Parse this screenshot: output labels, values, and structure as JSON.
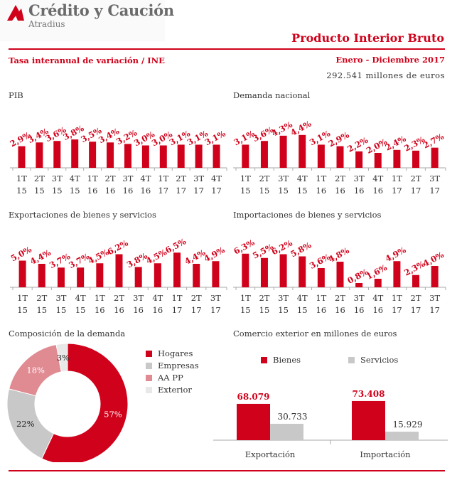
{
  "brand": {
    "name": "Crédito y Caución",
    "sub": "Atradius"
  },
  "report": {
    "title": "Producto Interior Bruto",
    "subtitle": "Tasa interanual de variación / INE",
    "period": "Enero - Diciembre 2017",
    "gdp_value": "292.541 millones de euros"
  },
  "colors": {
    "red": "#d0021b",
    "gray": "#c8c8c8",
    "pink": "#e08a92",
    "light": "#e8e8e8"
  },
  "chart_data": [
    {
      "type": "bar",
      "title": "PIB",
      "categories": [
        "1T 15",
        "2T 15",
        "3T 15",
        "4T 15",
        "1T 16",
        "2T 16",
        "3T 16",
        "4T 16",
        "1T 17",
        "2T 17",
        "3T 17",
        "4T 17"
      ],
      "values": [
        2.9,
        3.4,
        3.6,
        3.8,
        3.5,
        3.4,
        3.2,
        3.0,
        3.0,
        3.1,
        3.1,
        3.1
      ],
      "labels": [
        "2,9%",
        "3,4%",
        "3,6%",
        "3,8%",
        "3,5%",
        "3,4%",
        "3,2%",
        "3,0%",
        "3,0%",
        "3,1%",
        "3,1%",
        "3,1%"
      ]
    },
    {
      "type": "bar",
      "title": "Demanda nacional",
      "categories": [
        "1T 15",
        "2T 15",
        "3T 15",
        "4T 15",
        "1T 16",
        "2T 16",
        "3T 16",
        "4T 16",
        "1T 17",
        "2T 17",
        "3T 17"
      ],
      "values": [
        3.1,
        3.6,
        4.3,
        4.4,
        3.1,
        2.9,
        2.2,
        2.0,
        2.4,
        2.3,
        2.7
      ],
      "labels": [
        "3,1%",
        "3,6%",
        "4,3%",
        "4,4%",
        "3,1%",
        "2,9%",
        "2,2%",
        "2,0%",
        "2,4%",
        "2,3%",
        "2,7%"
      ]
    },
    {
      "type": "bar",
      "title": "Exportaciones de bienes y servicios",
      "categories": [
        "1T 15",
        "2T 15",
        "3T 15",
        "4T 15",
        "1T 16",
        "2T 16",
        "3T 16",
        "4T 16",
        "1T 17",
        "2T 17",
        "3T 17"
      ],
      "values": [
        5.0,
        4.4,
        3.7,
        3.7,
        4.5,
        6.2,
        3.8,
        4.5,
        6.5,
        4.4,
        4.9
      ],
      "labels": [
        "5,0%",
        "4,4%",
        "3,7%",
        "3,7%",
        "4,5%",
        "6,2%",
        "3,8%",
        "4,5%",
        "6,5%",
        "4,4%",
        "4,9%"
      ]
    },
    {
      "type": "bar",
      "title": "Importaciones de bienes y servicios",
      "categories": [
        "1T 15",
        "2T 15",
        "3T 15",
        "4T 15",
        "1T 16",
        "2T 16",
        "3T 16",
        "4T 16",
        "1T 17",
        "2T 17",
        "3T 17"
      ],
      "values": [
        6.3,
        5.5,
        6.2,
        5.8,
        3.6,
        4.8,
        0.8,
        1.6,
        4.9,
        2.3,
        4.0
      ],
      "labels": [
        "6,3%",
        "5,5%",
        "6,2%",
        "5,8%",
        "3,6%",
        "4,8%",
        "0,8%",
        "1,6%",
        "4,9%",
        "2,3%",
        "4,0%"
      ]
    },
    {
      "type": "pie",
      "title": "Composición de la demanda",
      "categories": [
        "Hogares",
        "Empresas",
        "AA PP",
        "Exterior"
      ],
      "values": [
        57,
        22,
        18,
        3
      ],
      "labels": [
        "57%",
        "22%",
        "18%",
        "3%"
      ],
      "colors": [
        "#d0021b",
        "#c8c8c8",
        "#e08a92",
        "#e8e8e8"
      ]
    },
    {
      "type": "bar",
      "title": "Comercio exterior en millones de euros",
      "categories": [
        "Exportación",
        "Importación"
      ],
      "series": [
        {
          "name": "Bienes",
          "values": [
            68079,
            73408
          ],
          "labels": [
            "68.079",
            "73.408"
          ],
          "color": "#d0021b"
        },
        {
          "name": "Servicios",
          "values": [
            30733,
            15929
          ],
          "labels": [
            "30.733",
            "15.929"
          ],
          "color": "#c8c8c8"
        }
      ]
    }
  ]
}
